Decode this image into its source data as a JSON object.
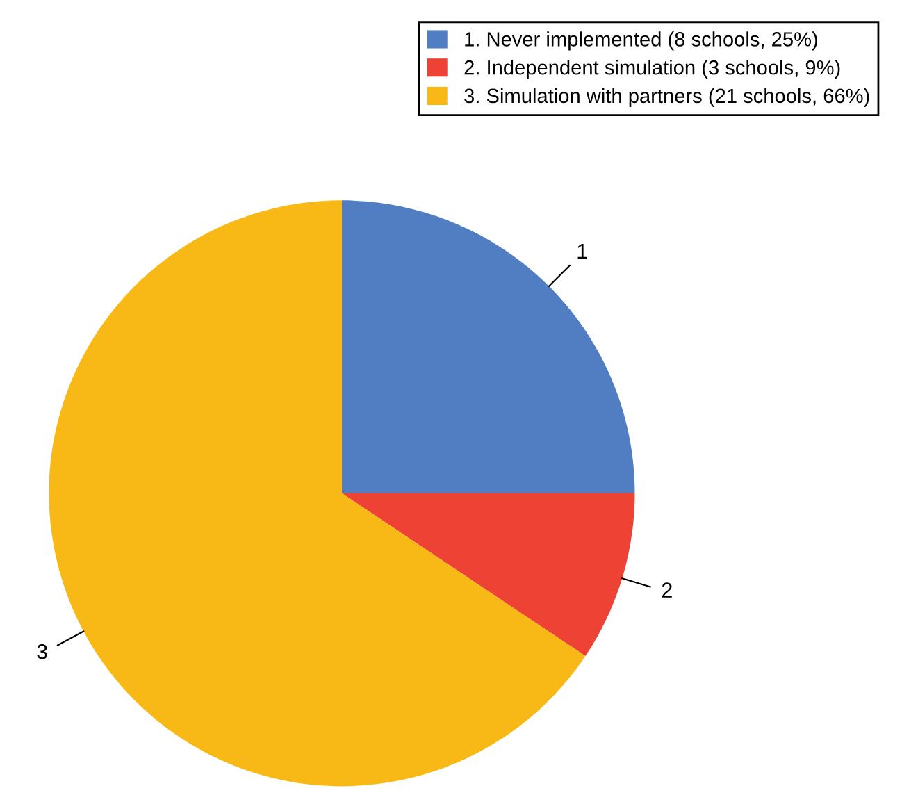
{
  "chart_data": {
    "type": "pie",
    "categories": [
      "1. Never implemented (8 schools, 25%)",
      "2. Independent simulation (3 schools, 9%)",
      "3. Simulation with partners (21 schools, 66%)"
    ],
    "values": [
      8,
      3,
      21
    ],
    "annotations": [
      "1",
      "2",
      "3"
    ],
    "colors": [
      "#517ec2",
      "#ee4235",
      "#f8b916"
    ],
    "legend": "top right"
  }
}
